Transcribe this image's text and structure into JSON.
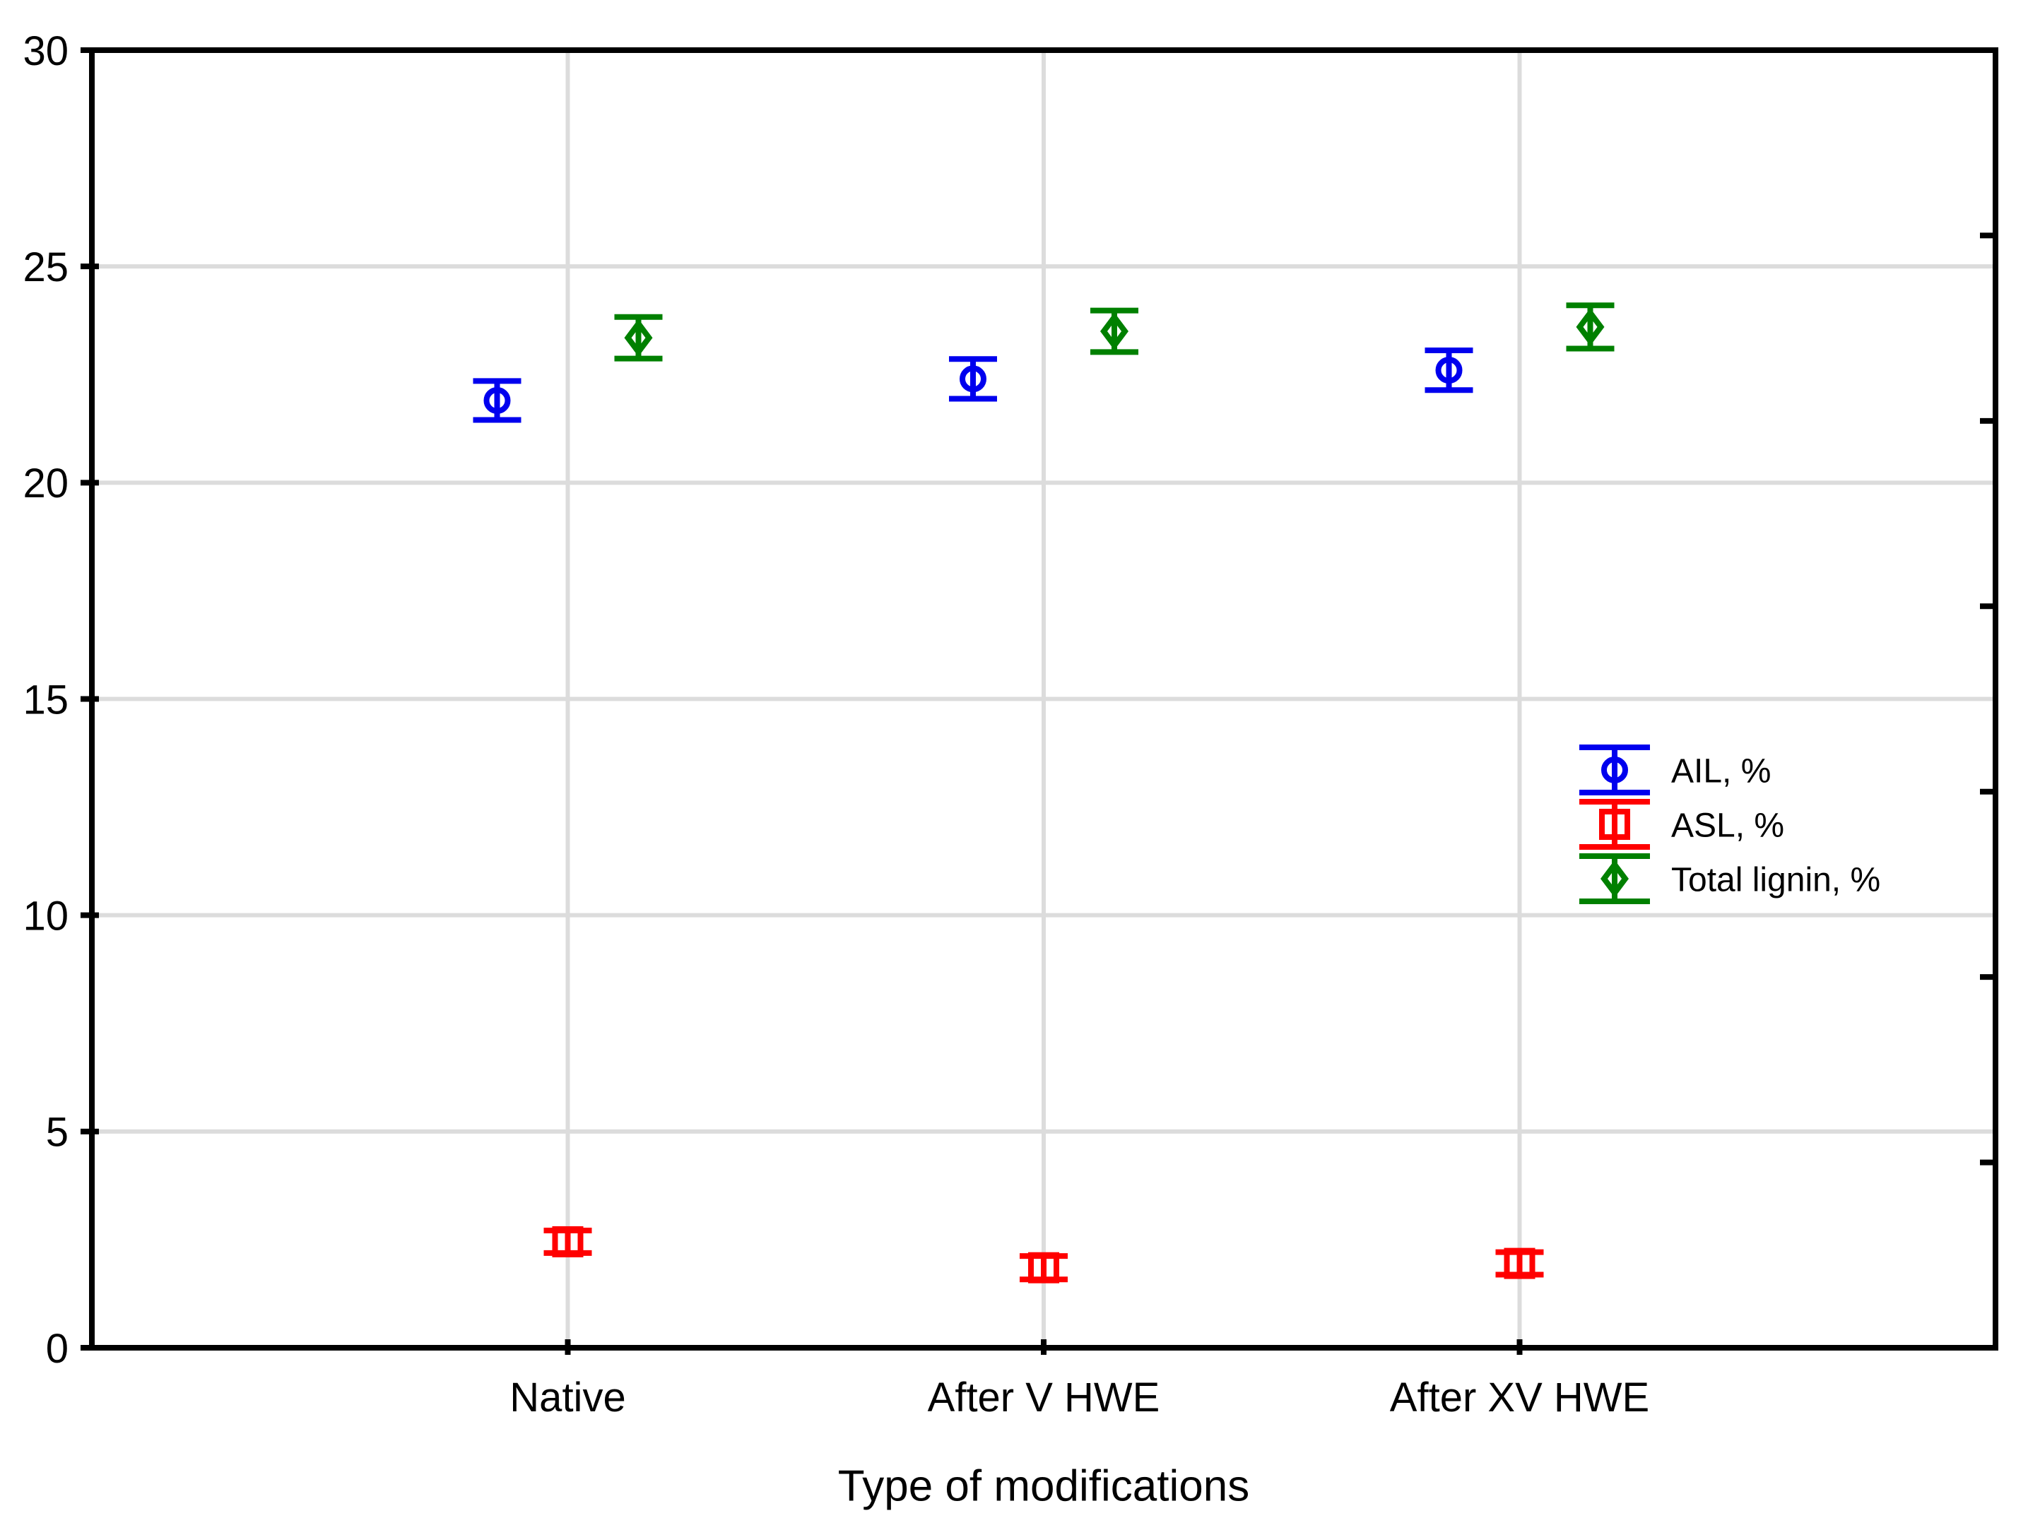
{
  "chart_data": {
    "type": "scatter",
    "title": "",
    "xlabel": "Type of modifications",
    "ylabel": "",
    "categories": [
      "Native",
      "After V HWE",
      "After XV HWE"
    ],
    "series": [
      {
        "name": "AIL, %",
        "color": "#0000ee",
        "marker": "circle",
        "dx": -100,
        "values": [
          21.9,
          22.4,
          22.6
        ],
        "errors": [
          0.45,
          0.46,
          0.46
        ]
      },
      {
        "name": "ASL, %",
        "color": "#ff0000",
        "marker": "square",
        "dx": 0,
        "values": [
          2.45,
          1.85,
          1.95
        ],
        "errors": [
          0.26,
          0.27,
          0.26
        ]
      },
      {
        "name": "Total lignin, %",
        "color": "#008000",
        "marker": "diamond",
        "dx": 100,
        "values": [
          23.35,
          23.5,
          23.6
        ],
        "errors": [
          0.48,
          0.48,
          0.5
        ]
      }
    ],
    "ylim": [
      0,
      30
    ],
    "yticks": [
      0,
      5,
      10,
      15,
      20,
      25,
      30
    ],
    "right_axis_divisions": 7,
    "grid": true,
    "legend_position": "inside-right",
    "axis_color": "#000000",
    "grid_color": "#dcdcdc",
    "background": "#ffffff"
  }
}
